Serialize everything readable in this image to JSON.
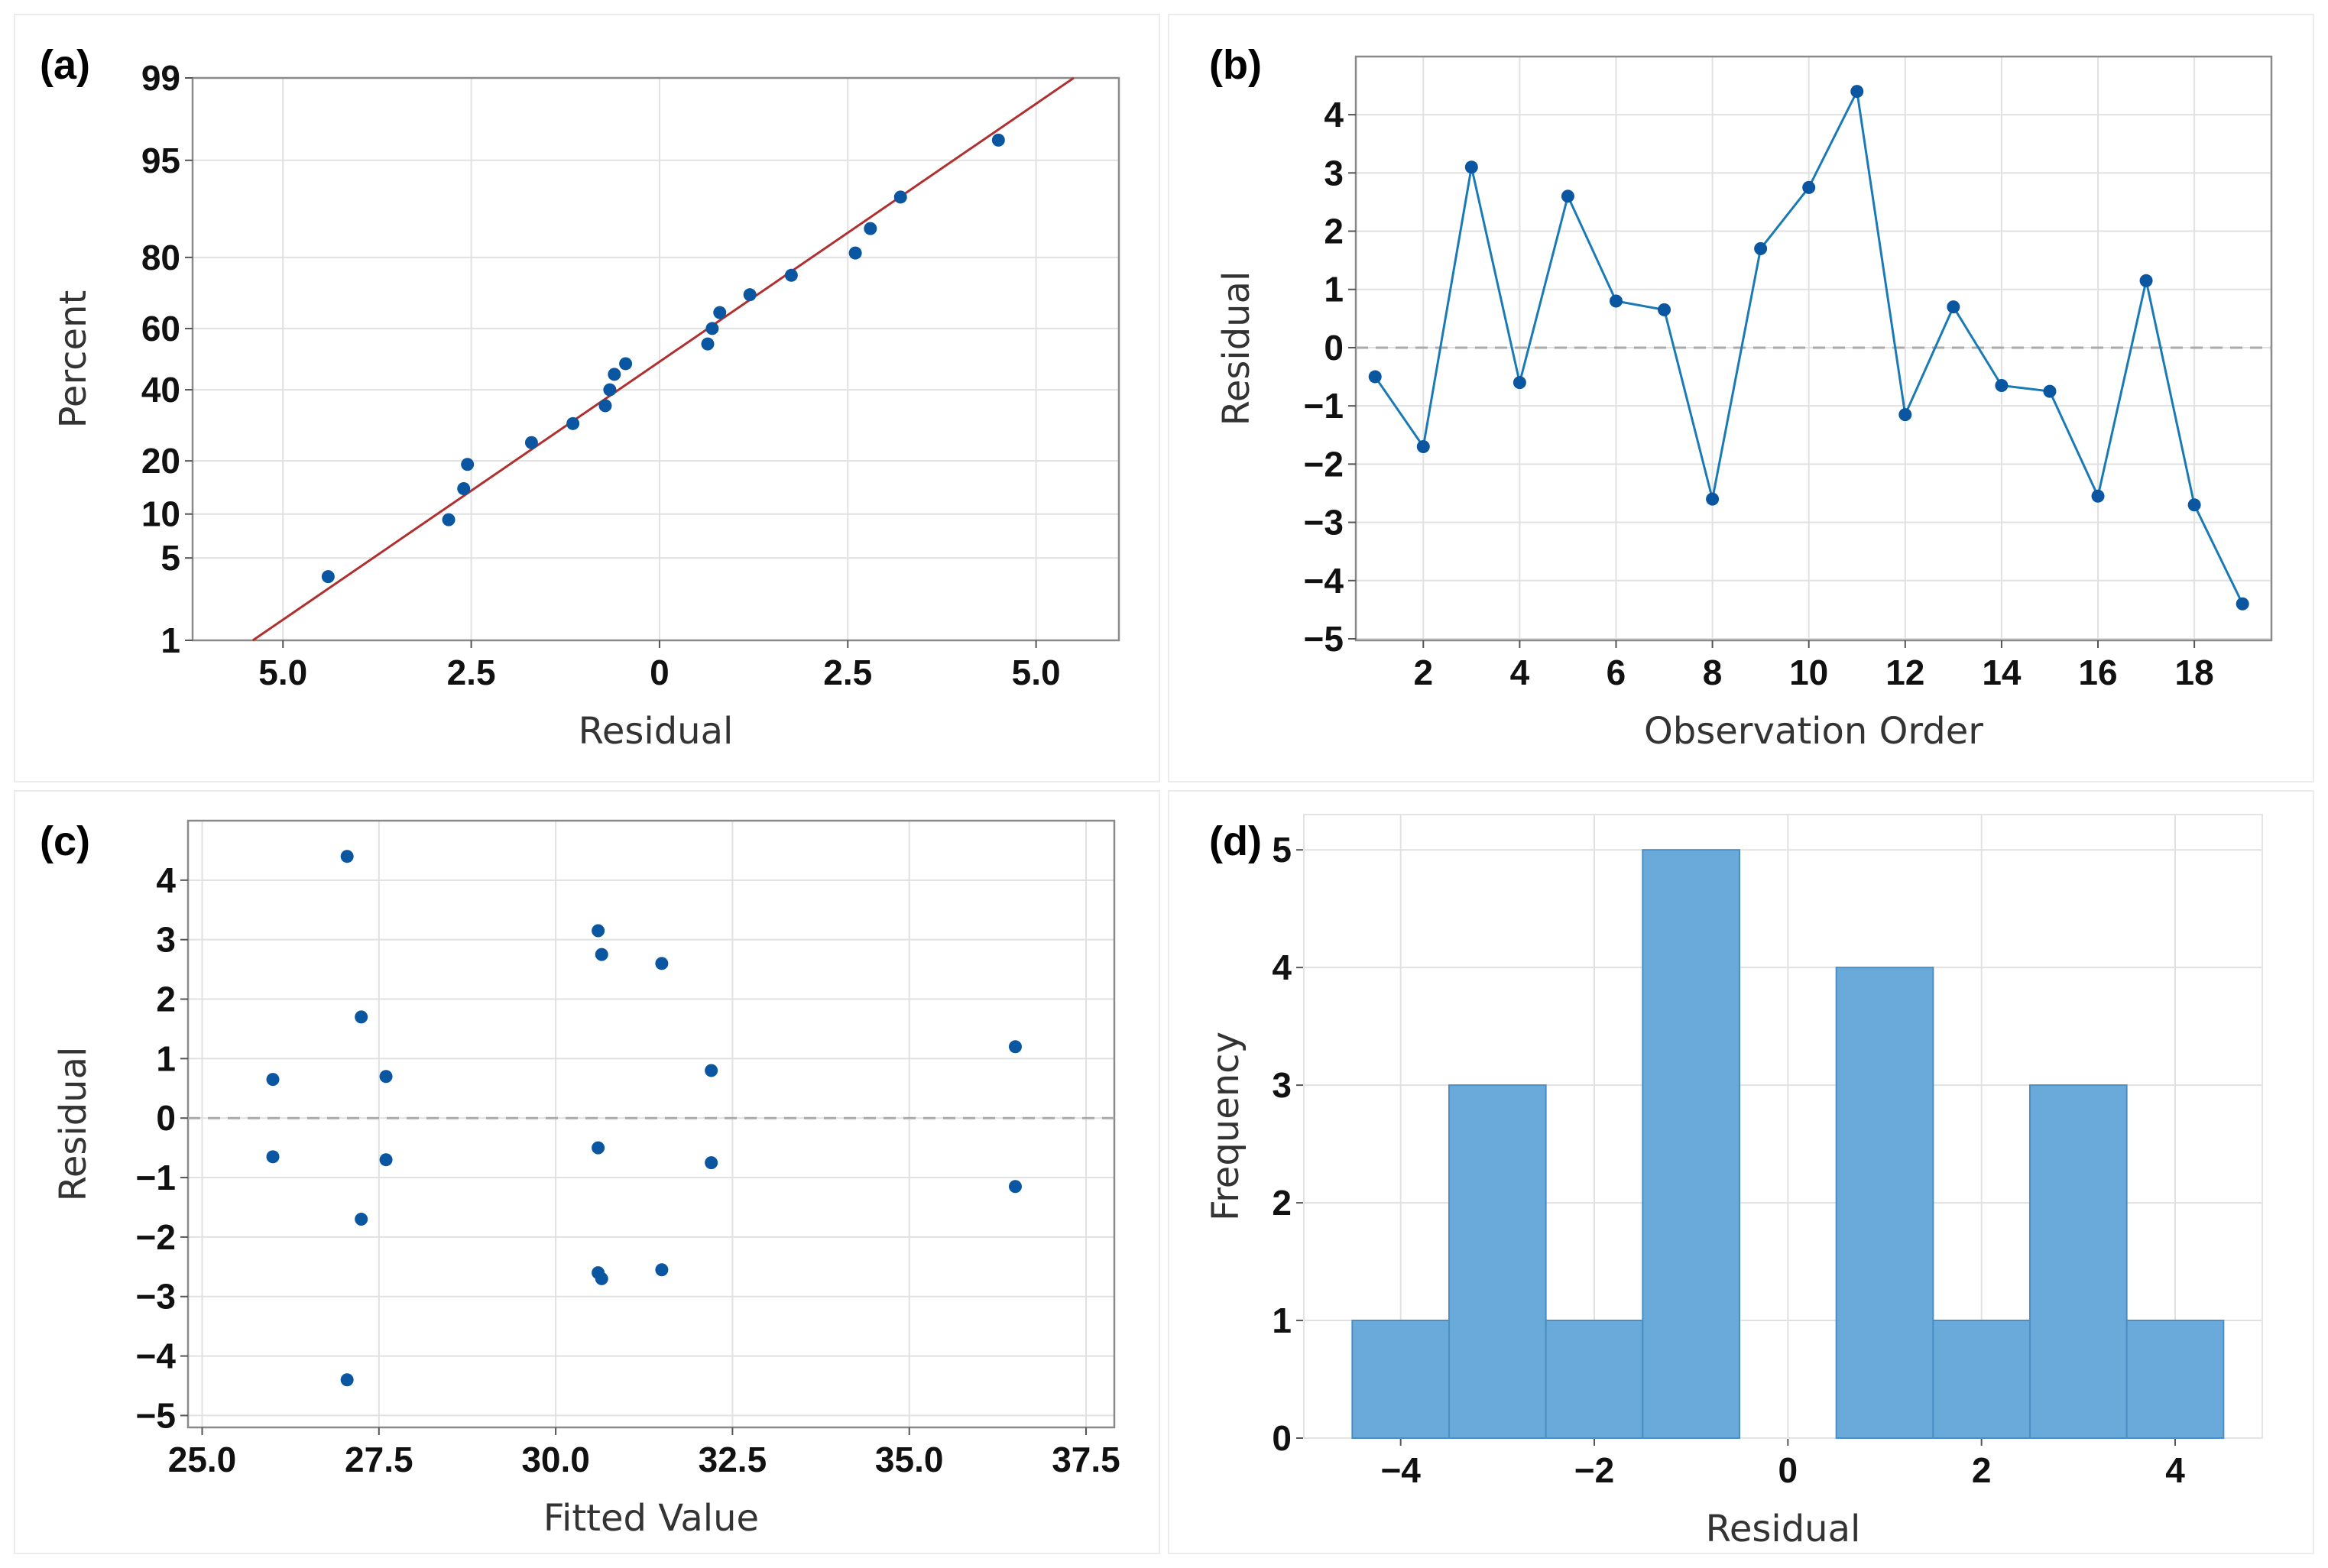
{
  "colors": {
    "points": "#0a56a0",
    "line_series": "#1a7ab5",
    "fit_line": "#b03030",
    "reference_line": "#aaaaaa",
    "grid": "#e1e1e1",
    "histogram_bar": "#6aaadb",
    "histogram_edge": "#4a8ec4"
  },
  "chart_data": [
    {
      "id": "a",
      "panel_label": "(a)",
      "type": "scatter",
      "subtype": "normal-probability-plot",
      "xlabel": "Residual",
      "ylabel": "Percent",
      "x_tick_labels": [
        "5.0",
        "2.5",
        "0",
        "2.5",
        "5.0"
      ],
      "x_tick_values": [
        -5.0,
        -2.5,
        0,
        2.5,
        5.0
      ],
      "y_tick_labels": [
        "1",
        "5",
        "10",
        "20",
        "40",
        "60",
        "80",
        "95",
        "99"
      ],
      "xlim": [
        -6.2,
        6.1
      ],
      "ylim": [
        1,
        99
      ],
      "grid": true,
      "points": [
        {
          "x": -4.4,
          "y": 3.6
        },
        {
          "x": -2.8,
          "y": 9.2
        },
        {
          "x": -2.6,
          "y": 14.2
        },
        {
          "x": -2.55,
          "y": 19.2
        },
        {
          "x": -1.7,
          "y": 24.5
        },
        {
          "x": -1.15,
          "y": 29.7
        },
        {
          "x": -0.72,
          "y": 35
        },
        {
          "x": -0.66,
          "y": 40
        },
        {
          "x": -0.6,
          "y": 45
        },
        {
          "x": -0.45,
          "y": 48.5
        },
        {
          "x": 0.64,
          "y": 55
        },
        {
          "x": 0.7,
          "y": 60
        },
        {
          "x": 0.8,
          "y": 65
        },
        {
          "x": 1.2,
          "y": 70.3
        },
        {
          "x": 1.75,
          "y": 75.6
        },
        {
          "x": 2.6,
          "y": 81
        },
        {
          "x": 2.8,
          "y": 86
        },
        {
          "x": 3.2,
          "y": 91
        },
        {
          "x": 4.5,
          "y": 96.5
        }
      ],
      "fit_line": {
        "x": [
          -5.4,
          5.5
        ],
        "y": [
          1,
          99
        ]
      }
    },
    {
      "id": "b",
      "panel_label": "(b)",
      "type": "line",
      "xlabel": "Observation Order",
      "ylabel": "Residual",
      "x_tick_labels": [
        "2",
        "4",
        "6",
        "8",
        "10",
        "12",
        "14",
        "16",
        "18"
      ],
      "x_tick_values": [
        2,
        4,
        6,
        8,
        10,
        12,
        14,
        16,
        18
      ],
      "y_tick_labels": [
        "−5",
        "−4",
        "−3",
        "−2",
        "−1",
        "0",
        "1",
        "2",
        "3",
        "4"
      ],
      "y_tick_values": [
        -5,
        -4,
        -3,
        -2,
        -1,
        0,
        1,
        2,
        3,
        4
      ],
      "xlim": [
        0.6,
        19.6
      ],
      "ylim": [
        -5,
        4.5
      ],
      "grid": true,
      "reference_y": 0,
      "x": [
        1,
        2,
        3,
        4,
        5,
        6,
        7,
        8,
        9,
        10,
        11,
        12,
        13,
        14,
        15,
        16,
        17,
        18,
        19
      ],
      "y": [
        -0.5,
        -1.7,
        3.1,
        -0.6,
        2.6,
        0.8,
        0.65,
        -2.6,
        1.7,
        2.75,
        4.4,
        -1.15,
        0.7,
        -0.65,
        -0.75,
        -2.55,
        1.15,
        -2.7,
        -4.4
      ]
    },
    {
      "id": "c",
      "panel_label": "(c)",
      "type": "scatter",
      "xlabel": "Fitted Value",
      "ylabel": "Residual",
      "x_tick_labels": [
        "25.0",
        "27.5",
        "30.0",
        "32.5",
        "35.0",
        "37.5"
      ],
      "x_tick_values": [
        25,
        27.5,
        30,
        32.5,
        35,
        37.5
      ],
      "y_tick_labels": [
        "−5",
        "−4",
        "−3",
        "−2",
        "−1",
        "0",
        "1",
        "2",
        "3",
        "4"
      ],
      "y_tick_values": [
        -5,
        -4,
        -3,
        -2,
        -1,
        0,
        1,
        2,
        3,
        4
      ],
      "xlim": [
        24.8,
        37.9
      ],
      "ylim": [
        -5.2,
        5
      ],
      "grid": true,
      "reference_y": 0,
      "points": [
        {
          "x": 27.05,
          "y": 4.4
        },
        {
          "x": 27.25,
          "y": 1.7
        },
        {
          "x": 26.0,
          "y": 0.65
        },
        {
          "x": 27.6,
          "y": 0.7
        },
        {
          "x": 26.0,
          "y": -0.65
        },
        {
          "x": 27.6,
          "y": -0.7
        },
        {
          "x": 27.25,
          "y": -1.7
        },
        {
          "x": 27.05,
          "y": -4.4
        },
        {
          "x": 30.6,
          "y": 3.15
        },
        {
          "x": 30.65,
          "y": 2.75
        },
        {
          "x": 31.5,
          "y": 2.6
        },
        {
          "x": 32.2,
          "y": 0.8
        },
        {
          "x": 30.6,
          "y": -0.5
        },
        {
          "x": 32.2,
          "y": -0.75
        },
        {
          "x": 30.6,
          "y": -2.6
        },
        {
          "x": 30.65,
          "y": -2.7
        },
        {
          "x": 31.5,
          "y": -2.55
        },
        {
          "x": 36.5,
          "y": 1.2
        },
        {
          "x": 36.5,
          "y": -1.15
        }
      ]
    },
    {
      "id": "d",
      "panel_label": "(d)",
      "type": "bar",
      "subtype": "histogram",
      "xlabel": "Residual",
      "ylabel": "Frequency",
      "x_tick_labels": [
        "−4",
        "−2",
        "0",
        "2",
        "4"
      ],
      "x_tick_values": [
        -4,
        -2,
        0,
        2,
        4
      ],
      "y_tick_labels": [
        "0",
        "1",
        "2",
        "3",
        "4",
        "5"
      ],
      "y_tick_values": [
        0,
        1,
        2,
        3,
        4,
        5
      ],
      "xlim": [
        -5,
        4.9
      ],
      "ylim": [
        0,
        5.3
      ],
      "grid": true,
      "bin_centers": [
        -4,
        -3,
        -2,
        -1,
        0,
        1,
        2,
        3,
        4
      ],
      "bin_width": 1,
      "values": [
        1,
        3,
        1,
        5,
        0,
        4,
        1,
        3,
        1
      ]
    }
  ]
}
